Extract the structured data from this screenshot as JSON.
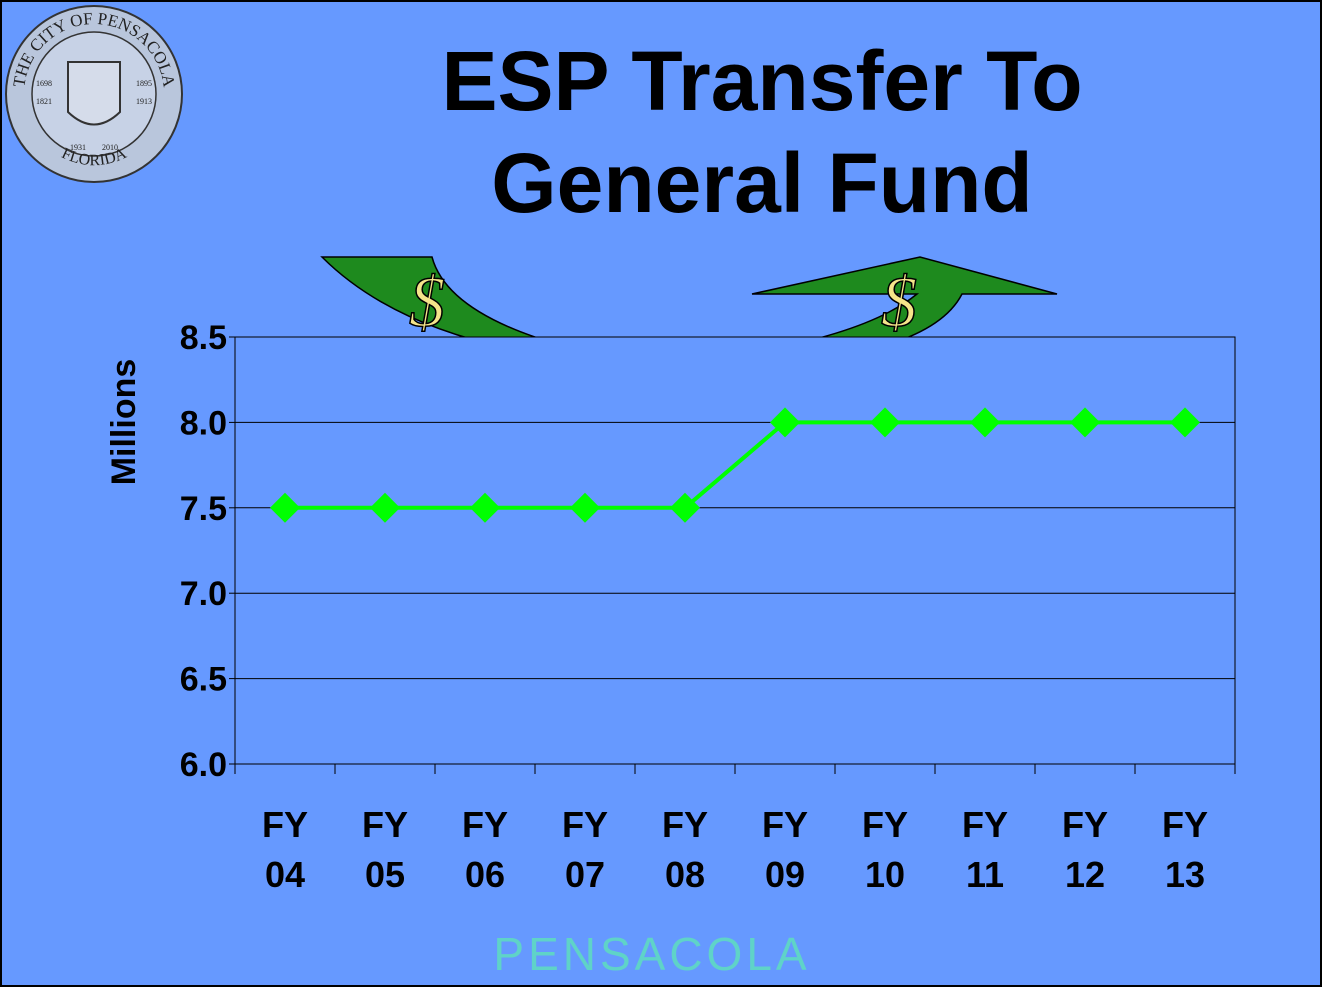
{
  "chart_data": {
    "type": "line",
    "title": "ESP Transfer To General Fund",
    "y_label": "Millions",
    "categories": [
      "FY 04",
      "FY 05",
      "FY 06",
      "FY 07",
      "FY 08",
      "FY 09",
      "FY 10",
      "FY 11",
      "FY 12",
      "FY 13"
    ],
    "values": [
      7.5,
      7.5,
      7.5,
      7.5,
      7.5,
      8.0,
      8.0,
      8.0,
      8.0,
      8.0
    ],
    "color": "#00ff00",
    "ylim": [
      6,
      8.5
    ],
    "yticks": [
      {
        "value": 6,
        "label": "6.0"
      },
      6.5,
      {
        "value": 7,
        "label": "7.0"
      },
      7.5,
      {
        "value": 8,
        "label": "8.0"
      },
      8.5
    ],
    "grid": true,
    "annotations": [
      "$",
      "$"
    ]
  },
  "seal": {
    "top": "THE CITY OF PENSACOLA",
    "bottom": "FLORIDA",
    "years": [
      "1698",
      "1821",
      "1895",
      "1913",
      "1931",
      "2010"
    ]
  },
  "footer": "PENSACOLA"
}
